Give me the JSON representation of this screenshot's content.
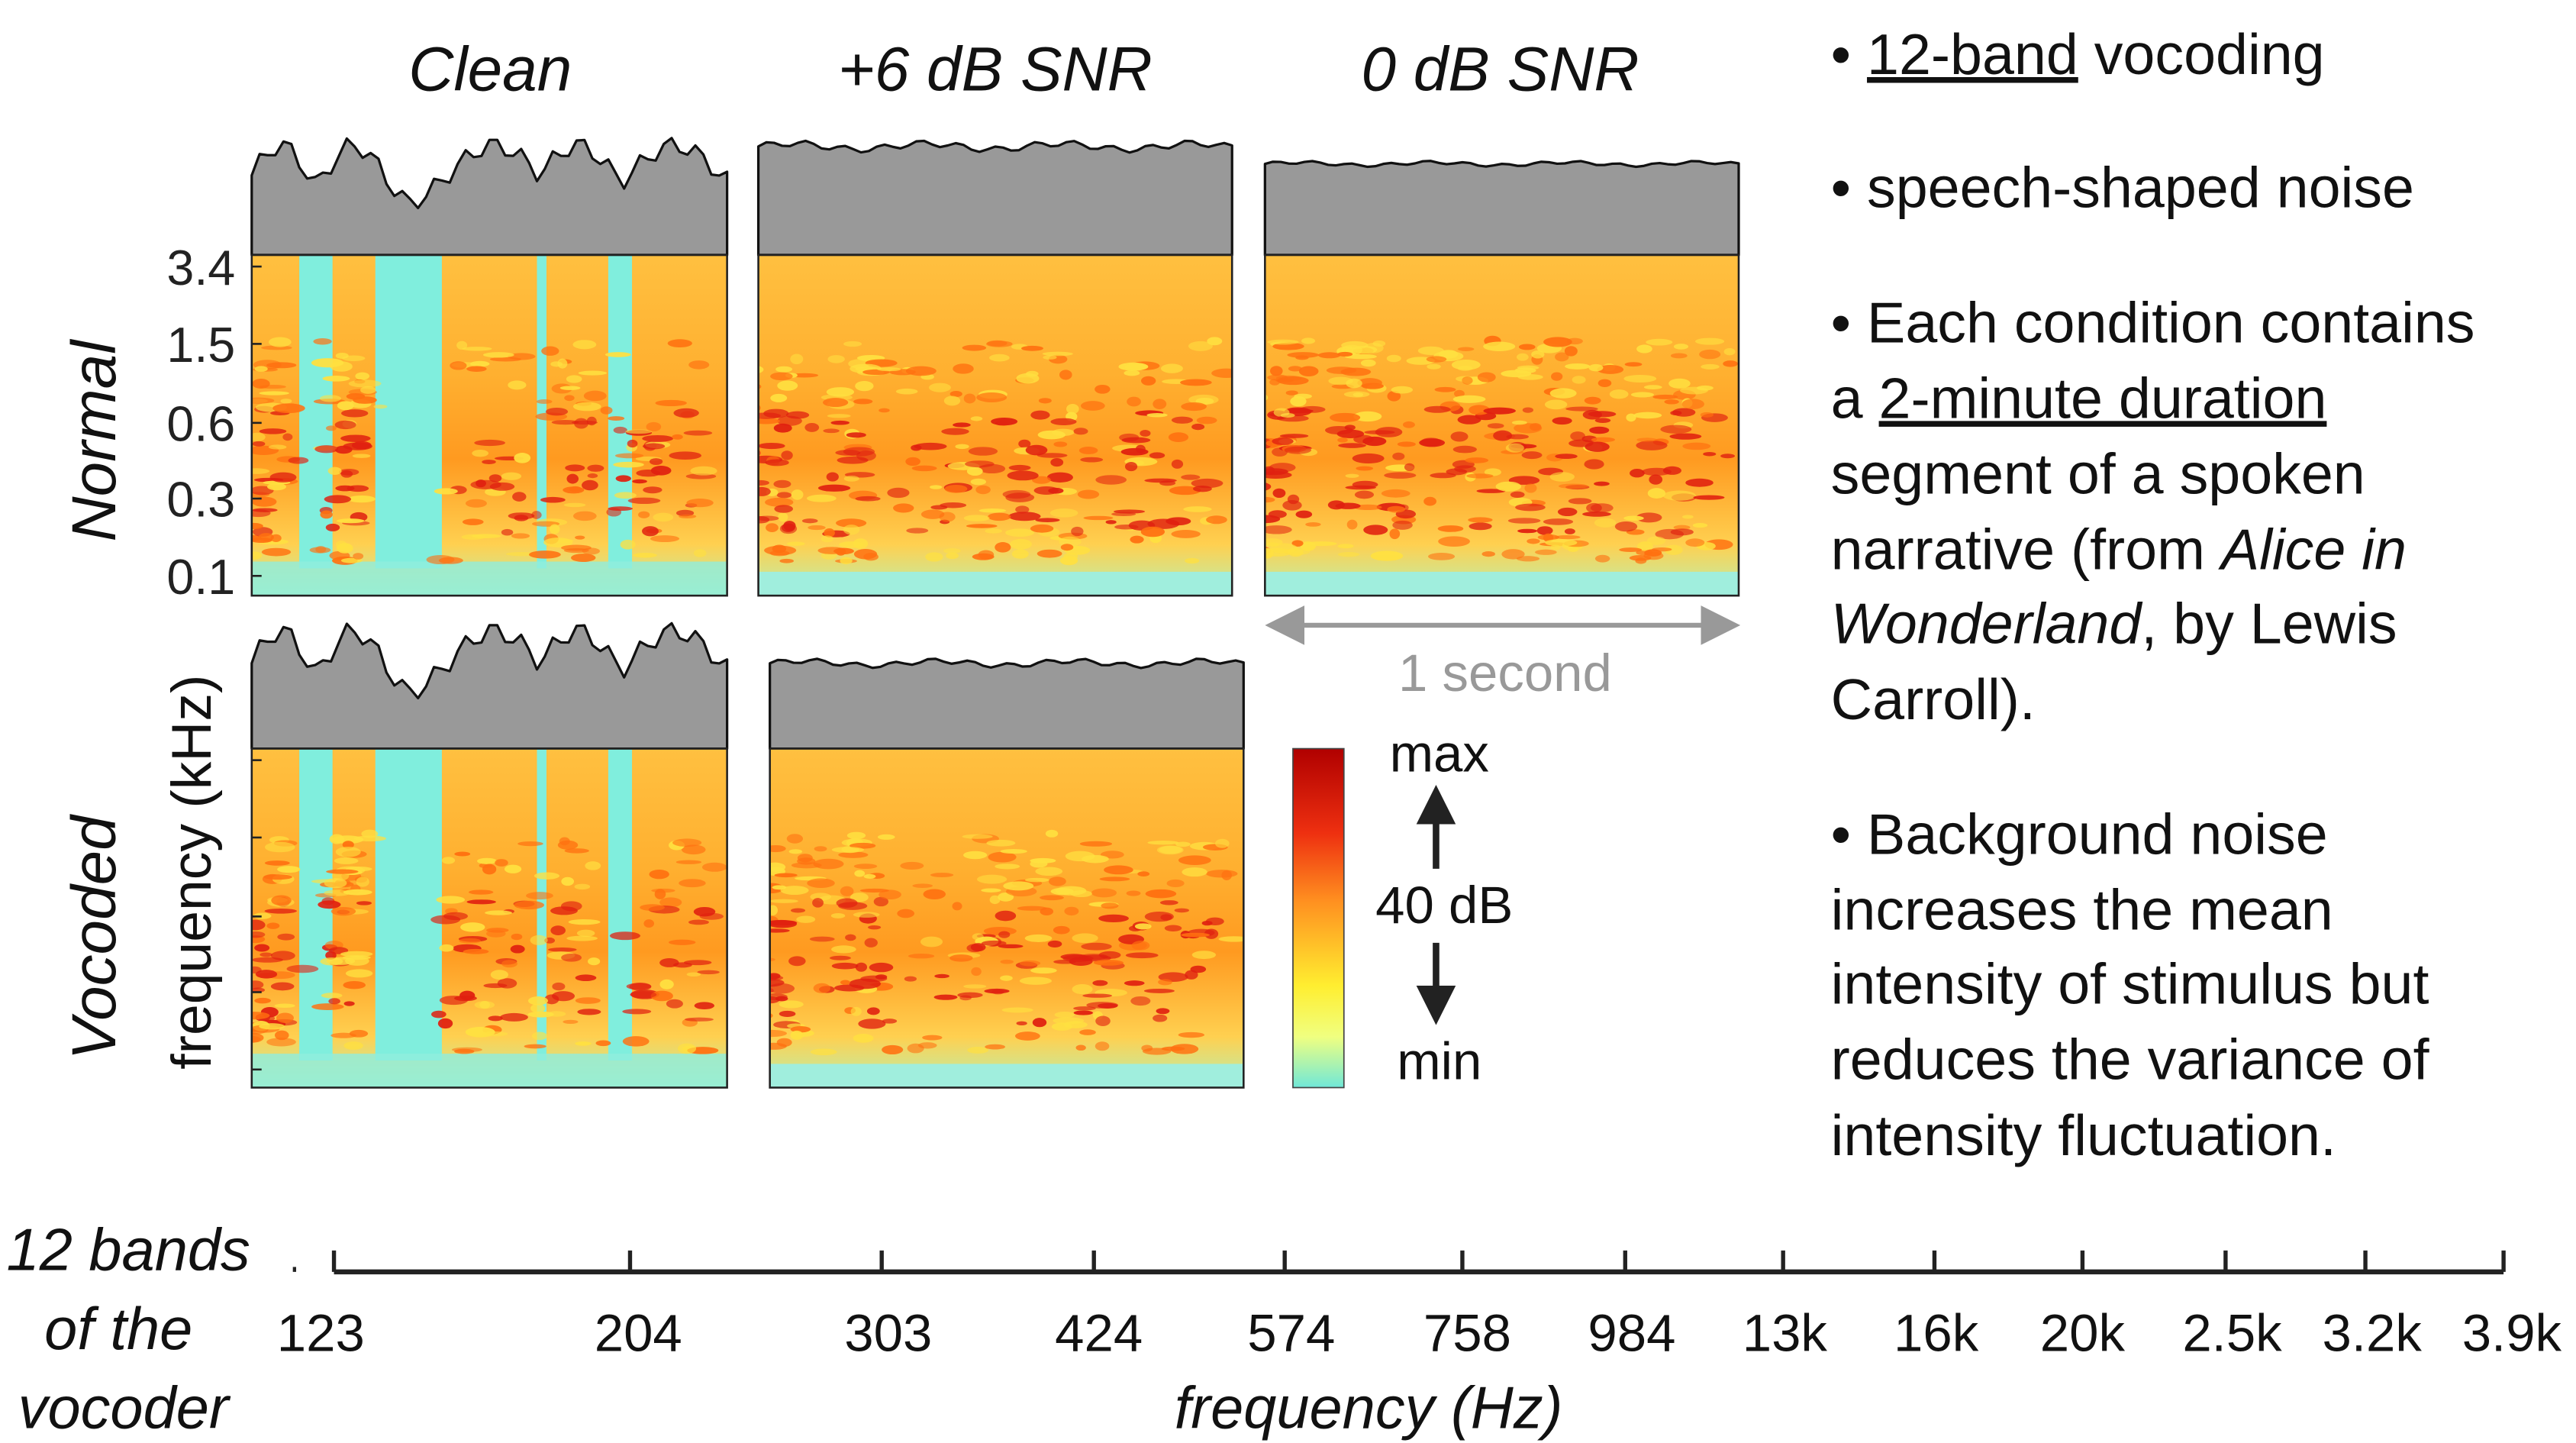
{
  "panel_titles": [
    "Clean",
    "+6 dB SNR",
    "0 dB SNR"
  ],
  "row_labels": [
    "Normal",
    "Vocoded"
  ],
  "y_axis": {
    "label": "frequency (kHz)",
    "ticks": [
      "3.4",
      "1.5",
      "0.6",
      "0.3",
      "0.1"
    ]
  },
  "time_scale": "1 second",
  "colorbar": {
    "top": "max",
    "middle": "40 dB",
    "bottom": "min"
  },
  "bullets": [
    {
      "lines": [
        [
          {
            "text": "• "
          },
          {
            "text": "12-band",
            "underline": true
          },
          {
            "text": " vocoding"
          }
        ]
      ]
    },
    {
      "lines": [
        [
          {
            "text": "• speech-shaped noise"
          }
        ]
      ]
    },
    {
      "lines": [
        [
          {
            "text": "• Each condition contains"
          }
        ],
        [
          {
            "text": "a "
          },
          {
            "text": "2-minute duration",
            "underline": true
          }
        ],
        [
          {
            "text": "segment of a spoken"
          }
        ],
        [
          {
            "text": "narrative (from "
          },
          {
            "text": "Alice in",
            "italic": true
          }
        ],
        [
          {
            "text": "Wonderland",
            "italic": true
          },
          {
            "text": ", by Lewis"
          }
        ],
        [
          {
            "text": "Carroll)."
          }
        ]
      ]
    },
    {
      "lines": [
        [
          {
            "text": "• Background noise"
          }
        ],
        [
          {
            "text": "increases the mean"
          }
        ],
        [
          {
            "text": "intensity of stimulus but"
          }
        ],
        [
          {
            "text": "reduces the variance of"
          }
        ],
        [
          {
            "text": "intensity fluctuation."
          }
        ]
      ]
    }
  ],
  "band_axis": {
    "label_lines": [
      "12 bands",
      "of the",
      "vocoder"
    ],
    "ticks": [
      "123",
      "204",
      "303",
      "424",
      "574",
      "758",
      "984",
      "13k",
      "16k",
      "20k",
      "2.5k",
      "3.2k",
      "3.9k"
    ],
    "title": "frequency (Hz)"
  }
}
